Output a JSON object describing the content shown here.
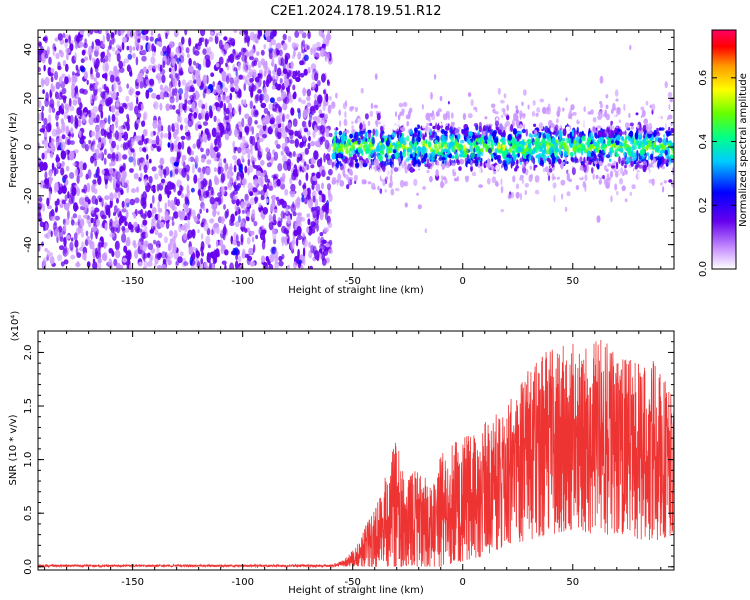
{
  "title": "C2E1.2024.178.19.51.R12",
  "chart_data": [
    {
      "type": "heatmap",
      "xlabel": "Height of straight line (km)",
      "ylabel": "Frequency (Hz)",
      "xlim": [
        -193,
        96
      ],
      "ylim": [
        -50,
        48
      ],
      "xticks": [
        -150,
        -100,
        -50,
        0,
        50
      ],
      "xtick_labels": [
        "-150",
        "-100",
        "-50",
        "0",
        "50"
      ],
      "yticks": [
        -40,
        -20,
        0,
        20,
        40
      ],
      "ytick_labels": [
        "-40",
        "-20",
        "0",
        "20",
        "40"
      ],
      "noise_region_x": [
        -193,
        -60
      ],
      "signal_region_x": [
        -60,
        96
      ],
      "signal_band_hz": [
        -8,
        8
      ],
      "colorbar": {
        "label": "Normalized spectral amplitude",
        "range": [
          0,
          0.75
        ],
        "ticks": [
          0.0,
          0.2,
          0.4,
          0.6
        ],
        "tick_labels": [
          "0.0",
          "0.2",
          "0.4",
          "0.6"
        ],
        "colors": [
          "#ffffff",
          "#cc99ff",
          "#6600ee",
          "#0000ff",
          "#00ccff",
          "#00ff88",
          "#66ff00",
          "#ffff00",
          "#ff9900",
          "#ff0000",
          "#ff0066"
        ]
      },
      "grid": false
    },
    {
      "type": "line",
      "xlabel": "Height of straight line (km)",
      "ylabel": "SNR (10 * v/v)",
      "multiplier_label": "(x10⁴)",
      "xlim": [
        -193,
        96
      ],
      "ylim": [
        -0.03,
        2.2
      ],
      "xticks": [
        -150,
        -100,
        -50,
        0,
        50
      ],
      "xtick_labels": [
        "-150",
        "-100",
        "-50",
        "0",
        "50"
      ],
      "yticks": [
        0.0,
        0.5,
        1.0,
        1.5,
        2.0
      ],
      "ytick_labels": [
        "0.0",
        "0.5",
        "1.0",
        "1.5",
        "2.0"
      ],
      "series": [
        {
          "color": "#ee3333",
          "envelope": {
            "x": [
              -193,
              -60,
              -55,
              -50,
              -45,
              -40,
              -35,
              -30,
              -25,
              -20,
              -15,
              -10,
              -5,
              0,
              10,
              20,
              30,
              40,
              50,
              60,
              70,
              80,
              90,
              96
            ],
            "upper": [
              0.02,
              0.02,
              0.05,
              0.15,
              0.35,
              0.55,
              0.85,
              1.25,
              0.8,
              1.0,
              0.75,
              1.05,
              1.15,
              1.2,
              1.35,
              1.5,
              1.85,
              2.05,
              2.1,
              2.2,
              2.0,
              1.9,
              2.0,
              1.5
            ],
            "lower": [
              0.0,
              0.0,
              0.0,
              0.0,
              0.0,
              0.0,
              0.0,
              0.0,
              0.0,
              0.0,
              0.0,
              0.0,
              0.02,
              0.05,
              0.1,
              0.2,
              0.25,
              0.3,
              0.35,
              0.3,
              0.3,
              0.25,
              0.25,
              0.3
            ]
          }
        }
      ],
      "grid": false
    }
  ]
}
